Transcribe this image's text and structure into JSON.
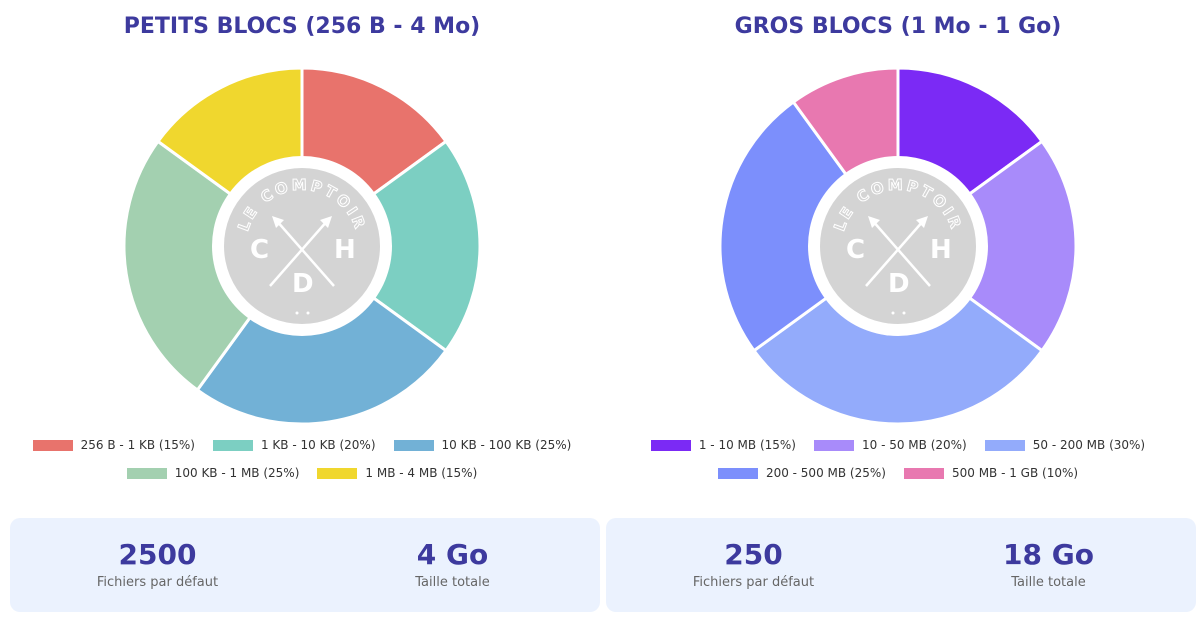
{
  "chart_data": [
    {
      "type": "pie",
      "title": "PETITS BLOCS (256 B - 4 Mo)",
      "categories": [
        "256 B - 1 KB (15%)",
        "1 KB - 10 KB (20%)",
        "10 KB - 100 KB (25%)",
        "100 KB - 1 MB (25%)",
        "1 MB - 4 MB (15%)"
      ],
      "values": [
        15,
        20,
        25,
        25,
        15
      ],
      "colors": [
        "#e8736c",
        "#7ccfc2",
        "#72b1d6",
        "#a3d0b0",
        "#f0d72e"
      ],
      "legend": "bottom",
      "stats": [
        {
          "value": "2500",
          "label": "Fichiers par défaut"
        },
        {
          "value": "4 Go",
          "label": "Taille totale"
        }
      ]
    },
    {
      "type": "pie",
      "title": "GROS BLOCS (1 Mo - 1 Go)",
      "categories": [
        "1 - 10 MB (15%)",
        "10 - 50 MB (20%)",
        "50 - 200 MB (30%)",
        "200 - 500 MB (25%)",
        "500 MB - 1 GB (10%)"
      ],
      "values": [
        15,
        20,
        30,
        25,
        10
      ],
      "colors": [
        "#7b2af5",
        "#a88bfa",
        "#93abfb",
        "#7c8ffc",
        "#e878b0"
      ],
      "legend": "bottom",
      "stats": [
        {
          "value": "250",
          "label": "Fichiers par défaut"
        },
        {
          "value": "18 Go",
          "label": "Taille totale"
        }
      ]
    }
  ],
  "watermark": {
    "text": "LE COMPTOIR",
    "letters": "CHD"
  }
}
